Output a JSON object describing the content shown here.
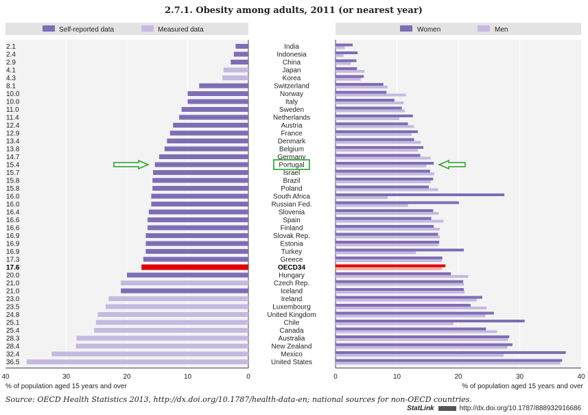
{
  "title": "2.7.1.  Obesity among adults, 2011 (or nearest year)",
  "colors": {
    "self_reported": "#7f6db4",
    "measured": "#c6b9e0",
    "women": "#7f6db4",
    "men": "#c6b9e0",
    "highlight": "#e00000",
    "highlight_light": "#f2a39a",
    "arrow": "#22a02a",
    "box": "#22a02a",
    "legend_bg": "#e3e3e3",
    "panel_bg": "#f3f3f3"
  },
  "chart_data": [
    {
      "type": "bar",
      "orientation": "horizontal",
      "direction": "right-to-left",
      "legend": [
        "Self-reported data",
        "Measured data"
      ],
      "legend_position": "top",
      "xlabel": "% of population aged 15 years and over",
      "xlim": [
        0,
        40
      ],
      "xticks": [
        "40",
        "30",
        "20",
        "10",
        "0"
      ],
      "categories": [
        "India",
        "Indonesia",
        "China",
        "Japan",
        "Korea",
        "Switzerland",
        "Norway",
        "Italy",
        "Sweden",
        "Netherlands",
        "Austria",
        "France",
        "Denmark",
        "Belgium",
        "Germany",
        "Portugal",
        "Israel",
        "Brazil",
        "Poland",
        "South Africa",
        "Russian Fed.",
        "Slovenia",
        "Spain",
        "Finland",
        "Slovak Rep.",
        "Estonia",
        "Turkey",
        "Greece",
        "OECD34",
        "Hungary",
        "Czech Rep.",
        "Iceland",
        "Ireland",
        "Luxembourg",
        "United Kingdom",
        "Chile",
        "Canada",
        "Australia",
        "New Zealand",
        "Mexico",
        "United States"
      ],
      "value_labels": [
        "2.1",
        "2.4",
        "2.9",
        "4.1",
        "4.3",
        "8.1",
        "10.0",
        "10.0",
        "11.0",
        "11.4",
        "12.4",
        "12.9",
        "13.4",
        "13.8",
        "14.7",
        "15.4",
        "15.7",
        "15.8",
        "15.8",
        "16.0",
        "16.0",
        "16.4",
        "16.6",
        "16.6",
        "16.9",
        "16.9",
        "16.9",
        "17.3",
        "17.6",
        "20.0",
        "21.0",
        "21.0",
        "23.0",
        "23.5",
        "24.8",
        "25.1",
        "25.4",
        "28.3",
        "28.4",
        "32.4",
        "36.5"
      ],
      "values": [
        2.1,
        2.4,
        2.9,
        4.1,
        4.3,
        8.1,
        10.0,
        10.0,
        11.0,
        11.4,
        12.4,
        12.9,
        13.4,
        13.8,
        14.7,
        15.4,
        15.7,
        15.8,
        15.8,
        16.0,
        16.0,
        16.4,
        16.6,
        16.6,
        16.9,
        16.9,
        16.9,
        17.3,
        17.6,
        20.0,
        21.0,
        21.0,
        23.0,
        23.5,
        24.8,
        25.1,
        25.4,
        28.3,
        28.4,
        32.4,
        36.5
      ],
      "data_type": [
        "self",
        "self",
        "self",
        "measured",
        "measured",
        "self",
        "self",
        "self",
        "self",
        "self",
        "self",
        "self",
        "self",
        "self",
        "self",
        "self",
        "self",
        "self",
        "self",
        "self",
        "self",
        "self",
        "self",
        "self",
        "self",
        "self",
        "self",
        "self",
        "highlight",
        "self",
        "measured",
        "self",
        "measured",
        "measured",
        "measured",
        "measured",
        "measured",
        "measured",
        "measured",
        "measured",
        "measured"
      ]
    },
    {
      "type": "bar",
      "orientation": "horizontal",
      "legend": [
        "Women",
        "Men"
      ],
      "legend_position": "top",
      "xlabel": "% of population aged 15 years and over",
      "xlim": [
        0,
        40
      ],
      "xticks": [
        "0",
        "10",
        "20",
        "30",
        "40"
      ],
      "series": [
        {
          "name": "Women",
          "values": [
            2.8,
            3.6,
            3.4,
            3.5,
            4.6,
            7.8,
            8.3,
            9.6,
            10.8,
            12.6,
            11.8,
            13.4,
            12.8,
            14.3,
            13.8,
            16.0,
            15.4,
            15.9,
            15.2,
            27.5,
            20.1,
            15.9,
            15.6,
            16.0,
            16.7,
            16.9,
            20.9,
            17.4,
            17.9,
            18.8,
            20.8,
            20.9,
            23.9,
            22.0,
            25.8,
            30.8,
            24.5,
            28.3,
            28.8,
            37.5,
            36.9
          ]
        },
        {
          "name": "Men",
          "values": [
            1.5,
            1.3,
            2.5,
            4.7,
            4.1,
            8.5,
            11.5,
            11.1,
            11.3,
            10.4,
            12.8,
            12.4,
            13.9,
            13.4,
            15.5,
            14.8,
            16.1,
            15.5,
            16.7,
            8.5,
            11.8,
            16.8,
            17.6,
            17.0,
            17.0,
            16.8,
            13.1,
            17.3,
            17.3,
            21.6,
            20.9,
            21.0,
            23.0,
            24.6,
            24.4,
            19.2,
            26.3,
            28.1,
            28.0,
            27.4,
            36.6
          ]
        }
      ]
    }
  ],
  "source": {
    "label": "Source:",
    "text": "OECD Health Statistics 2013, http://dx.doi.org/10.1787/health-data-en; national sources for non-OECD countries."
  },
  "statlink": {
    "label": "StatLink",
    "url": "http://dx.doi.org/10.1787/888932916686"
  }
}
